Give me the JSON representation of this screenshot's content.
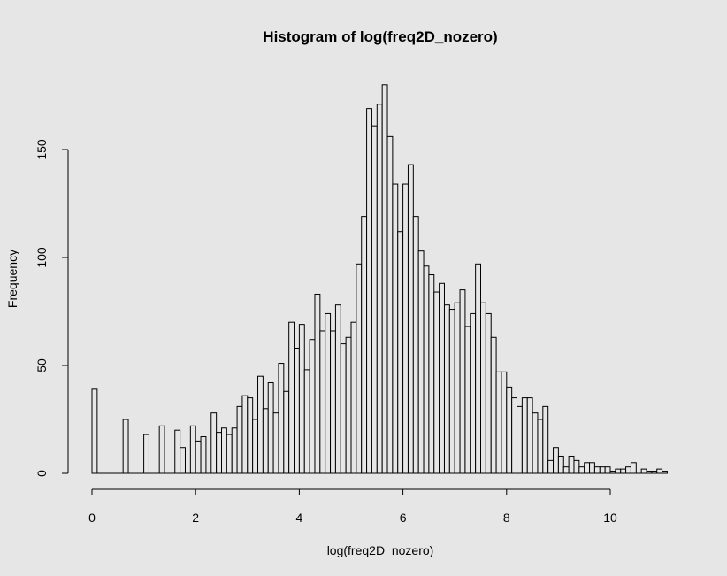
{
  "chart_data": {
    "type": "bar",
    "title": "Histogram of log(freq2D_nozero)",
    "xlabel": "log(freq2D_nozero)",
    "ylabel": "Frequency",
    "xlim": [
      0,
      11.1
    ],
    "ylim": [
      0,
      180
    ],
    "x_ticks": [
      0,
      2,
      4,
      6,
      8,
      10
    ],
    "x_tick_labels": [
      "0",
      "2",
      "4",
      "6",
      "8",
      "10"
    ],
    "y_ticks": [
      0,
      50,
      100,
      150
    ],
    "y_tick_labels": [
      "0",
      "50",
      "100",
      "150"
    ],
    "bin_width": 0.1,
    "x": [
      0.0,
      0.1,
      0.2,
      0.3,
      0.4,
      0.5,
      0.6,
      0.7,
      0.8,
      0.9,
      1.0,
      1.1,
      1.2,
      1.3,
      1.4,
      1.5,
      1.6,
      1.7,
      1.8,
      1.9,
      2.0,
      2.1,
      2.2,
      2.3,
      2.4,
      2.5,
      2.6,
      2.7,
      2.8,
      2.9,
      3.0,
      3.1,
      3.2,
      3.3,
      3.4,
      3.5,
      3.6,
      3.7,
      3.8,
      3.9,
      4.0,
      4.1,
      4.2,
      4.3,
      4.4,
      4.5,
      4.6,
      4.7,
      4.8,
      4.9,
      5.0,
      5.1,
      5.2,
      5.3,
      5.4,
      5.5,
      5.6,
      5.7,
      5.8,
      5.9,
      6.0,
      6.1,
      6.2,
      6.3,
      6.4,
      6.5,
      6.6,
      6.7,
      6.8,
      6.9,
      7.0,
      7.1,
      7.2,
      7.3,
      7.4,
      7.5,
      7.6,
      7.7,
      7.8,
      7.9,
      8.0,
      8.1,
      8.2,
      8.3,
      8.4,
      8.5,
      8.6,
      8.7,
      8.8,
      8.9,
      9.0,
      9.1,
      9.2,
      9.3,
      9.4,
      9.5,
      9.6,
      9.7,
      9.8,
      9.9,
      10.0,
      10.1,
      10.2,
      10.3,
      10.4,
      10.5,
      10.6,
      10.7,
      10.8,
      10.9,
      11.0
    ],
    "values": [
      39,
      0,
      0,
      0,
      0,
      0,
      25,
      0,
      0,
      0,
      18,
      0,
      0,
      22,
      0,
      0,
      20,
      12,
      0,
      22,
      15,
      17,
      0,
      28,
      19,
      21,
      18,
      21,
      31,
      36,
      35,
      25,
      45,
      30,
      42,
      28,
      51,
      38,
      70,
      58,
      69,
      48,
      62,
      83,
      66,
      74,
      66,
      78,
      60,
      63,
      70,
      97,
      119,
      169,
      161,
      171,
      180,
      156,
      134,
      112,
      134,
      143,
      119,
      103,
      96,
      92,
      84,
      88,
      78,
      76,
      79,
      85,
      68,
      74,
      97,
      79,
      74,
      63,
      47,
      47,
      40,
      35,
      31,
      35,
      35,
      28,
      25,
      31,
      6,
      12,
      8,
      3,
      8,
      6,
      3,
      5,
      5,
      3,
      3,
      3,
      1,
      2,
      2,
      3,
      5,
      0,
      2,
      1,
      1,
      2,
      1
    ],
    "grid": false,
    "legend": "none"
  }
}
